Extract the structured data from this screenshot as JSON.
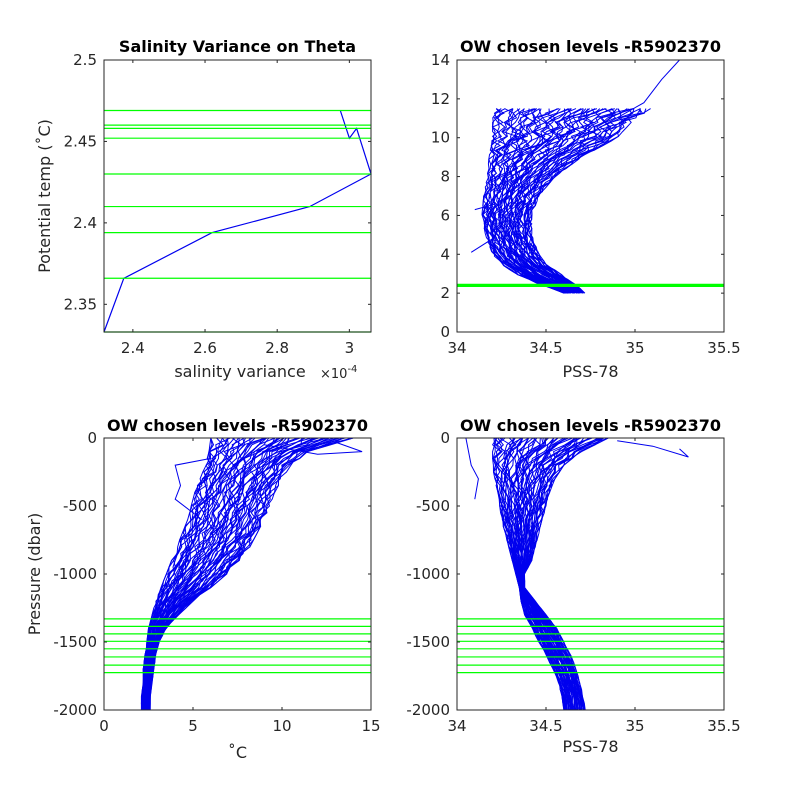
{
  "figure": {
    "colors": {
      "profile": "#0000ee",
      "level": "#00ff00",
      "axis": "#262626"
    }
  },
  "chart_data": [
    {
      "type": "line",
      "title": "Salinity Variance on Theta",
      "xlabel": "salinity variance",
      "x_exponent": "×10",
      "x_exponent_power": "-4",
      "ylabel": "Potential temp (˚C)",
      "xlim": [
        2.32,
        3.06
      ],
      "ylim": [
        2.333,
        2.5
      ],
      "xticks": [
        "2.4",
        "2.6",
        "2.8",
        "3"
      ],
      "yticks": [
        "2.35",
        "2.4",
        "2.45",
        "2.5"
      ],
      "xtick_values": [
        2.4,
        2.6,
        2.8,
        3.0
      ],
      "ytick_values": [
        2.35,
        2.4,
        2.45,
        2.5
      ],
      "series": [
        {
          "x": [
            2.32,
            2.375,
            2.62,
            2.89,
            3.06,
            3.02,
            3.0,
            2.975
          ],
          "y": [
            2.333,
            2.366,
            2.394,
            2.41,
            2.43,
            2.458,
            2.452,
            2.469
          ]
        }
      ],
      "hlines": [
        2.333,
        2.366,
        2.394,
        2.41,
        2.43,
        2.452,
        2.458,
        2.46,
        2.469
      ]
    },
    {
      "type": "line",
      "title": "OW chosen levels -R5902370",
      "xlabel": "PSS-78",
      "ylabel": "",
      "xlim": [
        34,
        35.5
      ],
      "ylim": [
        0,
        14
      ],
      "xticks": [
        "34",
        "34.5",
        "35",
        "35.5"
      ],
      "yticks": [
        "0",
        "2",
        "4",
        "6",
        "8",
        "10",
        "12",
        "14"
      ],
      "xtick_values": [
        34,
        34.5,
        35,
        35.5
      ],
      "ytick_values": [
        0,
        2,
        4,
        6,
        8,
        10,
        12,
        14
      ],
      "hlines": [
        2.35,
        2.37,
        2.39,
        2.41,
        2.43,
        2.45
      ],
      "envelope": {
        "y": [
          2.0,
          2.5,
          3.0,
          3.5,
          4.0,
          5.0,
          6.0,
          7.0,
          8.0,
          9.0,
          10.0,
          11.0,
          11.5
        ],
        "left": [
          34.6,
          34.45,
          34.33,
          34.25,
          34.2,
          34.16,
          34.14,
          34.15,
          34.17,
          34.18,
          34.2,
          34.2,
          34.22
        ],
        "right": [
          34.72,
          34.66,
          34.58,
          34.5,
          34.46,
          34.42,
          34.42,
          34.46,
          34.55,
          34.7,
          34.9,
          35.0,
          35.1
        ]
      },
      "outliers": [
        {
          "x": [
            34.7,
            35.05,
            35.15,
            35.25
          ],
          "y": [
            10.0,
            11.8,
            13.0,
            14.0
          ]
        },
        {
          "x": [
            34.08,
            34.2,
            34.28
          ],
          "y": [
            4.1,
            4.8,
            5.9
          ]
        },
        {
          "x": [
            34.1,
            34.22
          ],
          "y": [
            6.3,
            6.6
          ]
        }
      ]
    },
    {
      "type": "line",
      "title": "OW chosen levels -R5902370",
      "xlabel": "˚C",
      "ylabel": "Pressure (dbar)",
      "xlim": [
        0,
        15
      ],
      "ylim": [
        -2000,
        0
      ],
      "xticks": [
        "0",
        "5",
        "10",
        "15"
      ],
      "yticks": [
        "-2000",
        "-1500",
        "-1000",
        "-500",
        "0"
      ],
      "xtick_values": [
        0,
        5,
        10,
        15
      ],
      "ytick_values": [
        -2000,
        -1500,
        -1000,
        -500,
        0
      ],
      "hlines": [
        -1330,
        -1385,
        -1440,
        -1495,
        -1550,
        -1610,
        -1670,
        -1725
      ],
      "envelope": {
        "y": [
          0,
          -100,
          -200,
          -300,
          -400,
          -500,
          -600,
          -700,
          -800,
          -900,
          -1000,
          -1100,
          -1200,
          -1300,
          -1400,
          -1500,
          -1600,
          -1700,
          -1800,
          -1900,
          -2000
        ],
        "left": [
          6.0,
          5.9,
          5.7,
          5.4,
          5.1,
          4.9,
          4.7,
          4.4,
          4.1,
          3.8,
          3.5,
          3.2,
          2.9,
          2.7,
          2.5,
          2.4,
          2.3,
          2.2,
          2.2,
          2.1,
          2.1
        ],
        "right": [
          14.0,
          11.5,
          10.5,
          10.0,
          9.6,
          9.3,
          9.0,
          8.6,
          8.2,
          7.6,
          6.9,
          6.0,
          5.0,
          4.2,
          3.5,
          3.1,
          2.9,
          2.8,
          2.7,
          2.6,
          2.6
        ]
      },
      "outliers": [
        {
          "x": [
            6.0,
            4.0,
            4.3,
            4.0,
            5.5
          ],
          "y": [
            -150,
            -200,
            -350,
            -450,
            -600
          ]
        },
        {
          "x": [
            9.0,
            12.0,
            14.5,
            13.0
          ],
          "y": [
            -50,
            -120,
            -100,
            -30
          ]
        }
      ]
    },
    {
      "type": "line",
      "title": "OW chosen levels -R5902370",
      "xlabel": "PSS-78",
      "ylabel": "",
      "xlim": [
        34,
        35.5
      ],
      "ylim": [
        -2000,
        0
      ],
      "xticks": [
        "34",
        "34.5",
        "35",
        "35.5"
      ],
      "yticks": [
        "-2000",
        "-1500",
        "-1000",
        "-500",
        "0"
      ],
      "xtick_values": [
        34,
        34.5,
        35,
        35.5
      ],
      "ytick_values": [
        -2000,
        -1500,
        -1000,
        -500,
        0
      ],
      "hlines": [
        -1330,
        -1385,
        -1440,
        -1495,
        -1550,
        -1610,
        -1670,
        -1725
      ],
      "envelope": {
        "y": [
          0,
          -100,
          -200,
          -300,
          -400,
          -500,
          -600,
          -700,
          -800,
          -900,
          -1000,
          -1100,
          -1200,
          -1300,
          -1400,
          -1500,
          -1600,
          -1700,
          -1800,
          -1900,
          -2000
        ],
        "left": [
          34.2,
          34.2,
          34.2,
          34.21,
          34.23,
          34.24,
          34.25,
          34.27,
          34.29,
          34.31,
          34.33,
          34.35,
          34.36,
          34.38,
          34.42,
          34.46,
          34.5,
          34.54,
          34.57,
          34.59,
          34.6
        ],
        "right": [
          34.85,
          34.7,
          34.6,
          34.55,
          34.52,
          34.5,
          34.48,
          34.46,
          34.44,
          34.42,
          34.38,
          34.38,
          34.44,
          34.5,
          34.56,
          34.6,
          34.64,
          34.67,
          34.69,
          34.71,
          34.72
        ]
      },
      "outliers": [
        {
          "x": [
            34.05,
            34.08,
            34.12,
            34.1
          ],
          "y": [
            0,
            -200,
            -300,
            -450
          ]
        },
        {
          "x": [
            34.9,
            35.1,
            35.3,
            35.25
          ],
          "y": [
            -20,
            -60,
            -140,
            -80
          ]
        }
      ]
    }
  ]
}
